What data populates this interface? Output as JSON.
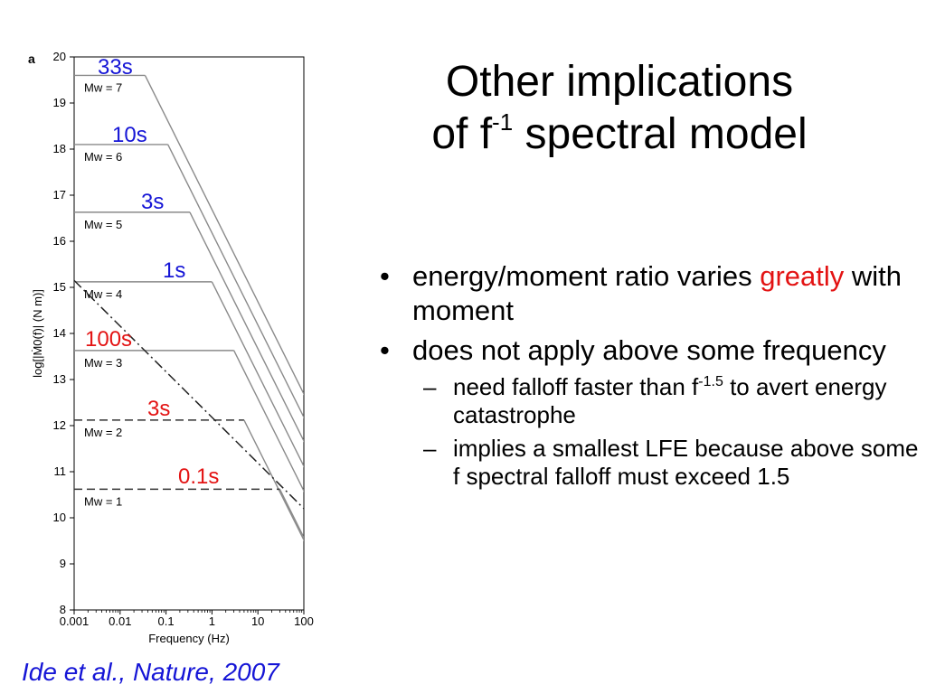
{
  "title": {
    "line1": "Other implications",
    "line2_prefix": "of f",
    "line2_sup": "-1",
    "line2_suffix": " spectral model"
  },
  "bullets": [
    {
      "pre": "energy/moment ratio varies ",
      "highlight": "greatly",
      "post": " with moment"
    },
    {
      "pre": "does not apply above some frequency",
      "highlight": "",
      "post": ""
    }
  ],
  "sub_bullets": [
    {
      "pre": "need falloff faster than f",
      "sup": "-1.5",
      "post": " to avert energy catastrophe"
    },
    {
      "pre": "implies a smallest LFE because above some f spectral falloff must exceed 1.5",
      "sup": "",
      "post": ""
    }
  ],
  "bullet_markers": {
    "bullet": "•",
    "dash": "–"
  },
  "citation": "Ide et al., Nature, 2007",
  "colors": {
    "blue": "#1515d6",
    "red": "#e31313",
    "gray_line": "#8a8a8a",
    "dark_line": "#333333"
  },
  "chart_data": {
    "type": "line",
    "panel_label": "a",
    "xlabel": "Frequency (Hz)",
    "ylabel": "log[|Ṁ0(f)| (N m)]",
    "xscale": "log",
    "xlim": [
      0.001,
      100
    ],
    "ylim": [
      8,
      20
    ],
    "xticks": [
      0.001,
      0.01,
      0.1,
      1,
      10,
      100
    ],
    "xtick_labels": [
      "0.001",
      "0.01",
      "0.1",
      "1",
      "10",
      "100"
    ],
    "yticks": [
      8,
      9,
      10,
      11,
      12,
      13,
      14,
      15,
      16,
      17,
      18,
      19,
      20
    ],
    "ytick_labels": [
      "8",
      "9",
      "10",
      "11",
      "12",
      "13",
      "14",
      "15",
      "16",
      "17",
      "18",
      "19",
      "20"
    ],
    "series": [
      {
        "label": "Mw = 7",
        "level": 19.6,
        "corner_hz": 0.035,
        "style": "solid",
        "duration": "33s",
        "duration_color": "blue"
      },
      {
        "label": "Mw = 6",
        "level": 18.1,
        "corner_hz": 0.11,
        "style": "solid",
        "duration": "10s",
        "duration_color": "blue"
      },
      {
        "label": "Mw = 5",
        "level": 16.63,
        "corner_hz": 0.33,
        "style": "solid",
        "duration": "3s",
        "duration_color": "blue"
      },
      {
        "label": "Mw = 4",
        "level": 15.12,
        "corner_hz": 1.0,
        "style": "solid",
        "duration": "1s",
        "duration_color": "blue"
      },
      {
        "label": "Mw = 3",
        "level": 13.63,
        "corner_hz": 3.0,
        "style": "solid",
        "duration": "100s",
        "duration_color": "red"
      },
      {
        "label": "Mw = 2",
        "level": 12.12,
        "corner_hz": 5.0,
        "style": "dashed",
        "duration": "3s",
        "duration_color": "red"
      },
      {
        "label": "Mw = 1",
        "level": 10.62,
        "corner_hz": 30.0,
        "style": "dashed",
        "duration": "0.1s",
        "duration_color": "red"
      }
    ],
    "falloff_slope": -2,
    "f1_model": {
      "style": "dashdot",
      "start": [
        0.001,
        15.15
      ],
      "end": [
        100,
        10.2
      ]
    }
  }
}
